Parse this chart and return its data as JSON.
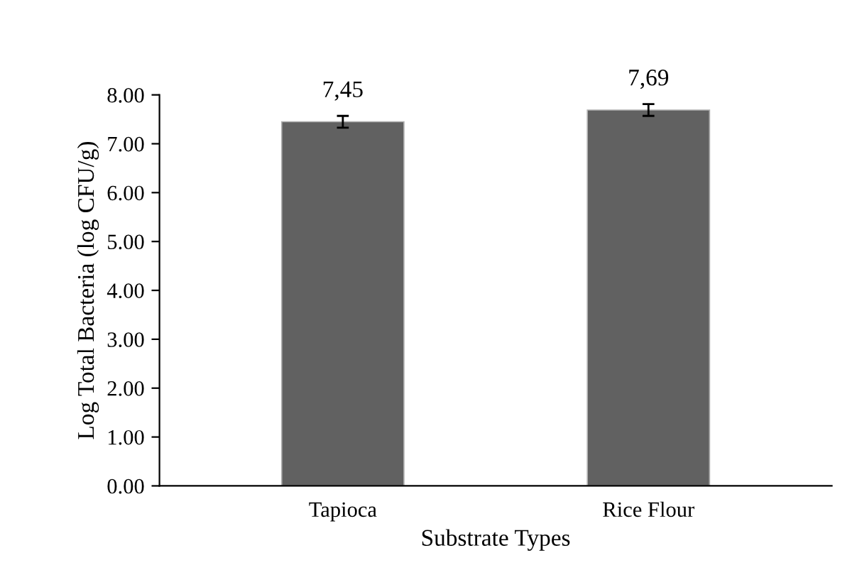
{
  "chart_data": {
    "type": "bar",
    "xlabel": "Substrate Types",
    "ylabel": "Log Total Bacteria (log CFU/g)",
    "categories": [
      "Tapioca",
      "Rice Flour"
    ],
    "values": [
      7.45,
      7.69
    ],
    "color": "#616161",
    "errors": [
      0.12,
      0.12
    ],
    "value_labels": [
      "7,45",
      "7,69"
    ],
    "ylim": [
      0,
      8
    ],
    "yticks": [
      {
        "value": 0,
        "label": "0.00"
      },
      {
        "value": 1,
        "label": "1.00"
      },
      {
        "value": 2,
        "label": "2.00"
      },
      {
        "value": 3,
        "label": "3.00"
      },
      {
        "value": 4,
        "label": "4.00"
      },
      {
        "value": 5,
        "label": "5.00"
      },
      {
        "value": 6,
        "label": "6.00"
      },
      {
        "value": 7,
        "label": "7.00"
      },
      {
        "value": 8,
        "label": "8.00"
      }
    ],
    "grid": false,
    "legend": false
  }
}
